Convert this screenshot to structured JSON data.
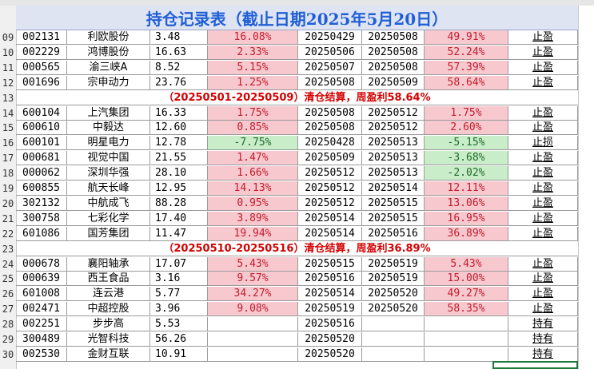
{
  "title": "持仓记录表（截止日期2025年5月20日）",
  "rows_before": [
    {
      "n": "09",
      "code": "002131",
      "name": "利欧股份",
      "price": "3.48",
      "gain1": "16.08%",
      "g1": "red",
      "buy": "20250429",
      "sell": "20250508",
      "gain2": "49.91%",
      "g2": "red",
      "status": "止盈"
    },
    {
      "n": "10",
      "code": "002229",
      "name": "鸿博股份",
      "price": "16.63",
      "gain1": "2.33%",
      "g1": "red",
      "buy": "20250506",
      "sell": "20250508",
      "gain2": "52.24%",
      "g2": "red",
      "status": "止盈"
    },
    {
      "n": "11",
      "code": "000565",
      "name": "渝三峡A",
      "price": "8.52",
      "gain1": "5.15%",
      "g1": "red",
      "buy": "20250507",
      "sell": "20250508",
      "gain2": "57.39%",
      "g2": "red",
      "status": "止盈"
    },
    {
      "n": "12",
      "code": "001696",
      "name": "宗申动力",
      "price": "23.76",
      "gain1": "1.25%",
      "g1": "red",
      "buy": "20250508",
      "sell": "20250509",
      "gain2": "58.64%",
      "g2": "red",
      "status": "止盈"
    }
  ],
  "summary1": {
    "n": "13",
    "text": "（20250501-20250509）清仓结算，周盈利58.64%"
  },
  "rows_mid": [
    {
      "n": "14",
      "code": "600104",
      "name": "上汽集团",
      "price": "16.33",
      "gain1": "1.75%",
      "g1": "red",
      "buy": "20250508",
      "sell": "20250512",
      "gain2": "1.75%",
      "g2": "red",
      "status": "止盈"
    },
    {
      "n": "15",
      "code": "600610",
      "name": "中毅达",
      "price": "12.60",
      "gain1": "0.85%",
      "g1": "red",
      "buy": "20250508",
      "sell": "20250512",
      "gain2": "2.60%",
      "g2": "red",
      "status": "止盈"
    },
    {
      "n": "16",
      "code": "600101",
      "name": "明星电力",
      "price": "12.78",
      "gain1": "-7.75%",
      "g1": "green",
      "buy": "20250428",
      "sell": "20250513",
      "gain2": "-5.15%",
      "g2": "green",
      "status": "止损"
    },
    {
      "n": "17",
      "code": "000681",
      "name": "视觉中国",
      "price": "21.55",
      "gain1": "1.47%",
      "g1": "red",
      "buy": "20250509",
      "sell": "20250513",
      "gain2": "-3.68%",
      "g2": "green",
      "status": "止盈"
    },
    {
      "n": "18",
      "code": "000062",
      "name": "深圳华强",
      "price": "28.10",
      "gain1": "1.66%",
      "g1": "red",
      "buy": "20250512",
      "sell": "20250513",
      "gain2": "-2.02%",
      "g2": "green",
      "status": "止盈"
    },
    {
      "n": "19",
      "code": "600855",
      "name": "航天长峰",
      "price": "12.95",
      "gain1": "14.13%",
      "g1": "red",
      "buy": "20250512",
      "sell": "20250514",
      "gain2": "12.11%",
      "g2": "red",
      "status": "止盈"
    },
    {
      "n": "20",
      "code": "302132",
      "name": "中航成飞",
      "price": "88.28",
      "gain1": "0.95%",
      "g1": "red",
      "buy": "20250512",
      "sell": "20250515",
      "gain2": "13.06%",
      "g2": "red",
      "status": "止盈"
    },
    {
      "n": "21",
      "code": "300758",
      "name": "七彩化学",
      "price": "17.40",
      "gain1": "3.89%",
      "g1": "red",
      "buy": "20250514",
      "sell": "20250515",
      "gain2": "16.95%",
      "g2": "red",
      "status": "止盈"
    },
    {
      "n": "22",
      "code": "601086",
      "name": "国芳集团",
      "price": "11.47",
      "gain1": "19.94%",
      "g1": "red",
      "buy": "20250514",
      "sell": "20250516",
      "gain2": "36.89%",
      "g2": "red",
      "status": "止盈"
    }
  ],
  "summary2": {
    "n": "23",
    "text": "（20250510-20250516）清仓结算，周盈利36.89%"
  },
  "rows_after": [
    {
      "n": "24",
      "code": "000678",
      "name": "襄阳轴承",
      "price": "17.07",
      "gain1": "5.43%",
      "g1": "red",
      "buy": "20250515",
      "sell": "20250519",
      "gain2": "5.43%",
      "g2": "red",
      "status": "止盈"
    },
    {
      "n": "25",
      "code": "000639",
      "name": "西王食品",
      "price": "3.16",
      "gain1": "9.57%",
      "g1": "red",
      "buy": "20250516",
      "sell": "20250519",
      "gain2": "15.00%",
      "g2": "red",
      "status": "止盈"
    },
    {
      "n": "26",
      "code": "601008",
      "name": "连云港",
      "price": "5.77",
      "gain1": "34.27%",
      "g1": "red",
      "buy": "20250514",
      "sell": "20250520",
      "gain2": "49.27%",
      "g2": "red",
      "status": "止盈"
    },
    {
      "n": "27",
      "code": "002471",
      "name": "中超控股",
      "price": "3.96",
      "gain1": "9.08%",
      "g1": "red",
      "buy": "20250519",
      "sell": "20250520",
      "gain2": "58.35%",
      "g2": "red",
      "status": "止盈"
    },
    {
      "n": "28",
      "code": "002251",
      "name": "步步高",
      "price": "5.53",
      "gain1": "",
      "g1": "",
      "buy": "20250516",
      "sell": "",
      "gain2": "",
      "g2": "",
      "status": "持有"
    },
    {
      "n": "29",
      "code": "300489",
      "name": "光智科技",
      "price": "56.26",
      "gain1": "",
      "g1": "",
      "buy": "20250520",
      "sell": "",
      "gain2": "",
      "g2": "",
      "status": "持有"
    },
    {
      "n": "30",
      "code": "002530",
      "name": "金财互联",
      "price": "10.91",
      "gain1": "",
      "g1": "",
      "buy": "20250520",
      "sell": "",
      "gain2": "",
      "g2": "",
      "status": "持有"
    }
  ]
}
